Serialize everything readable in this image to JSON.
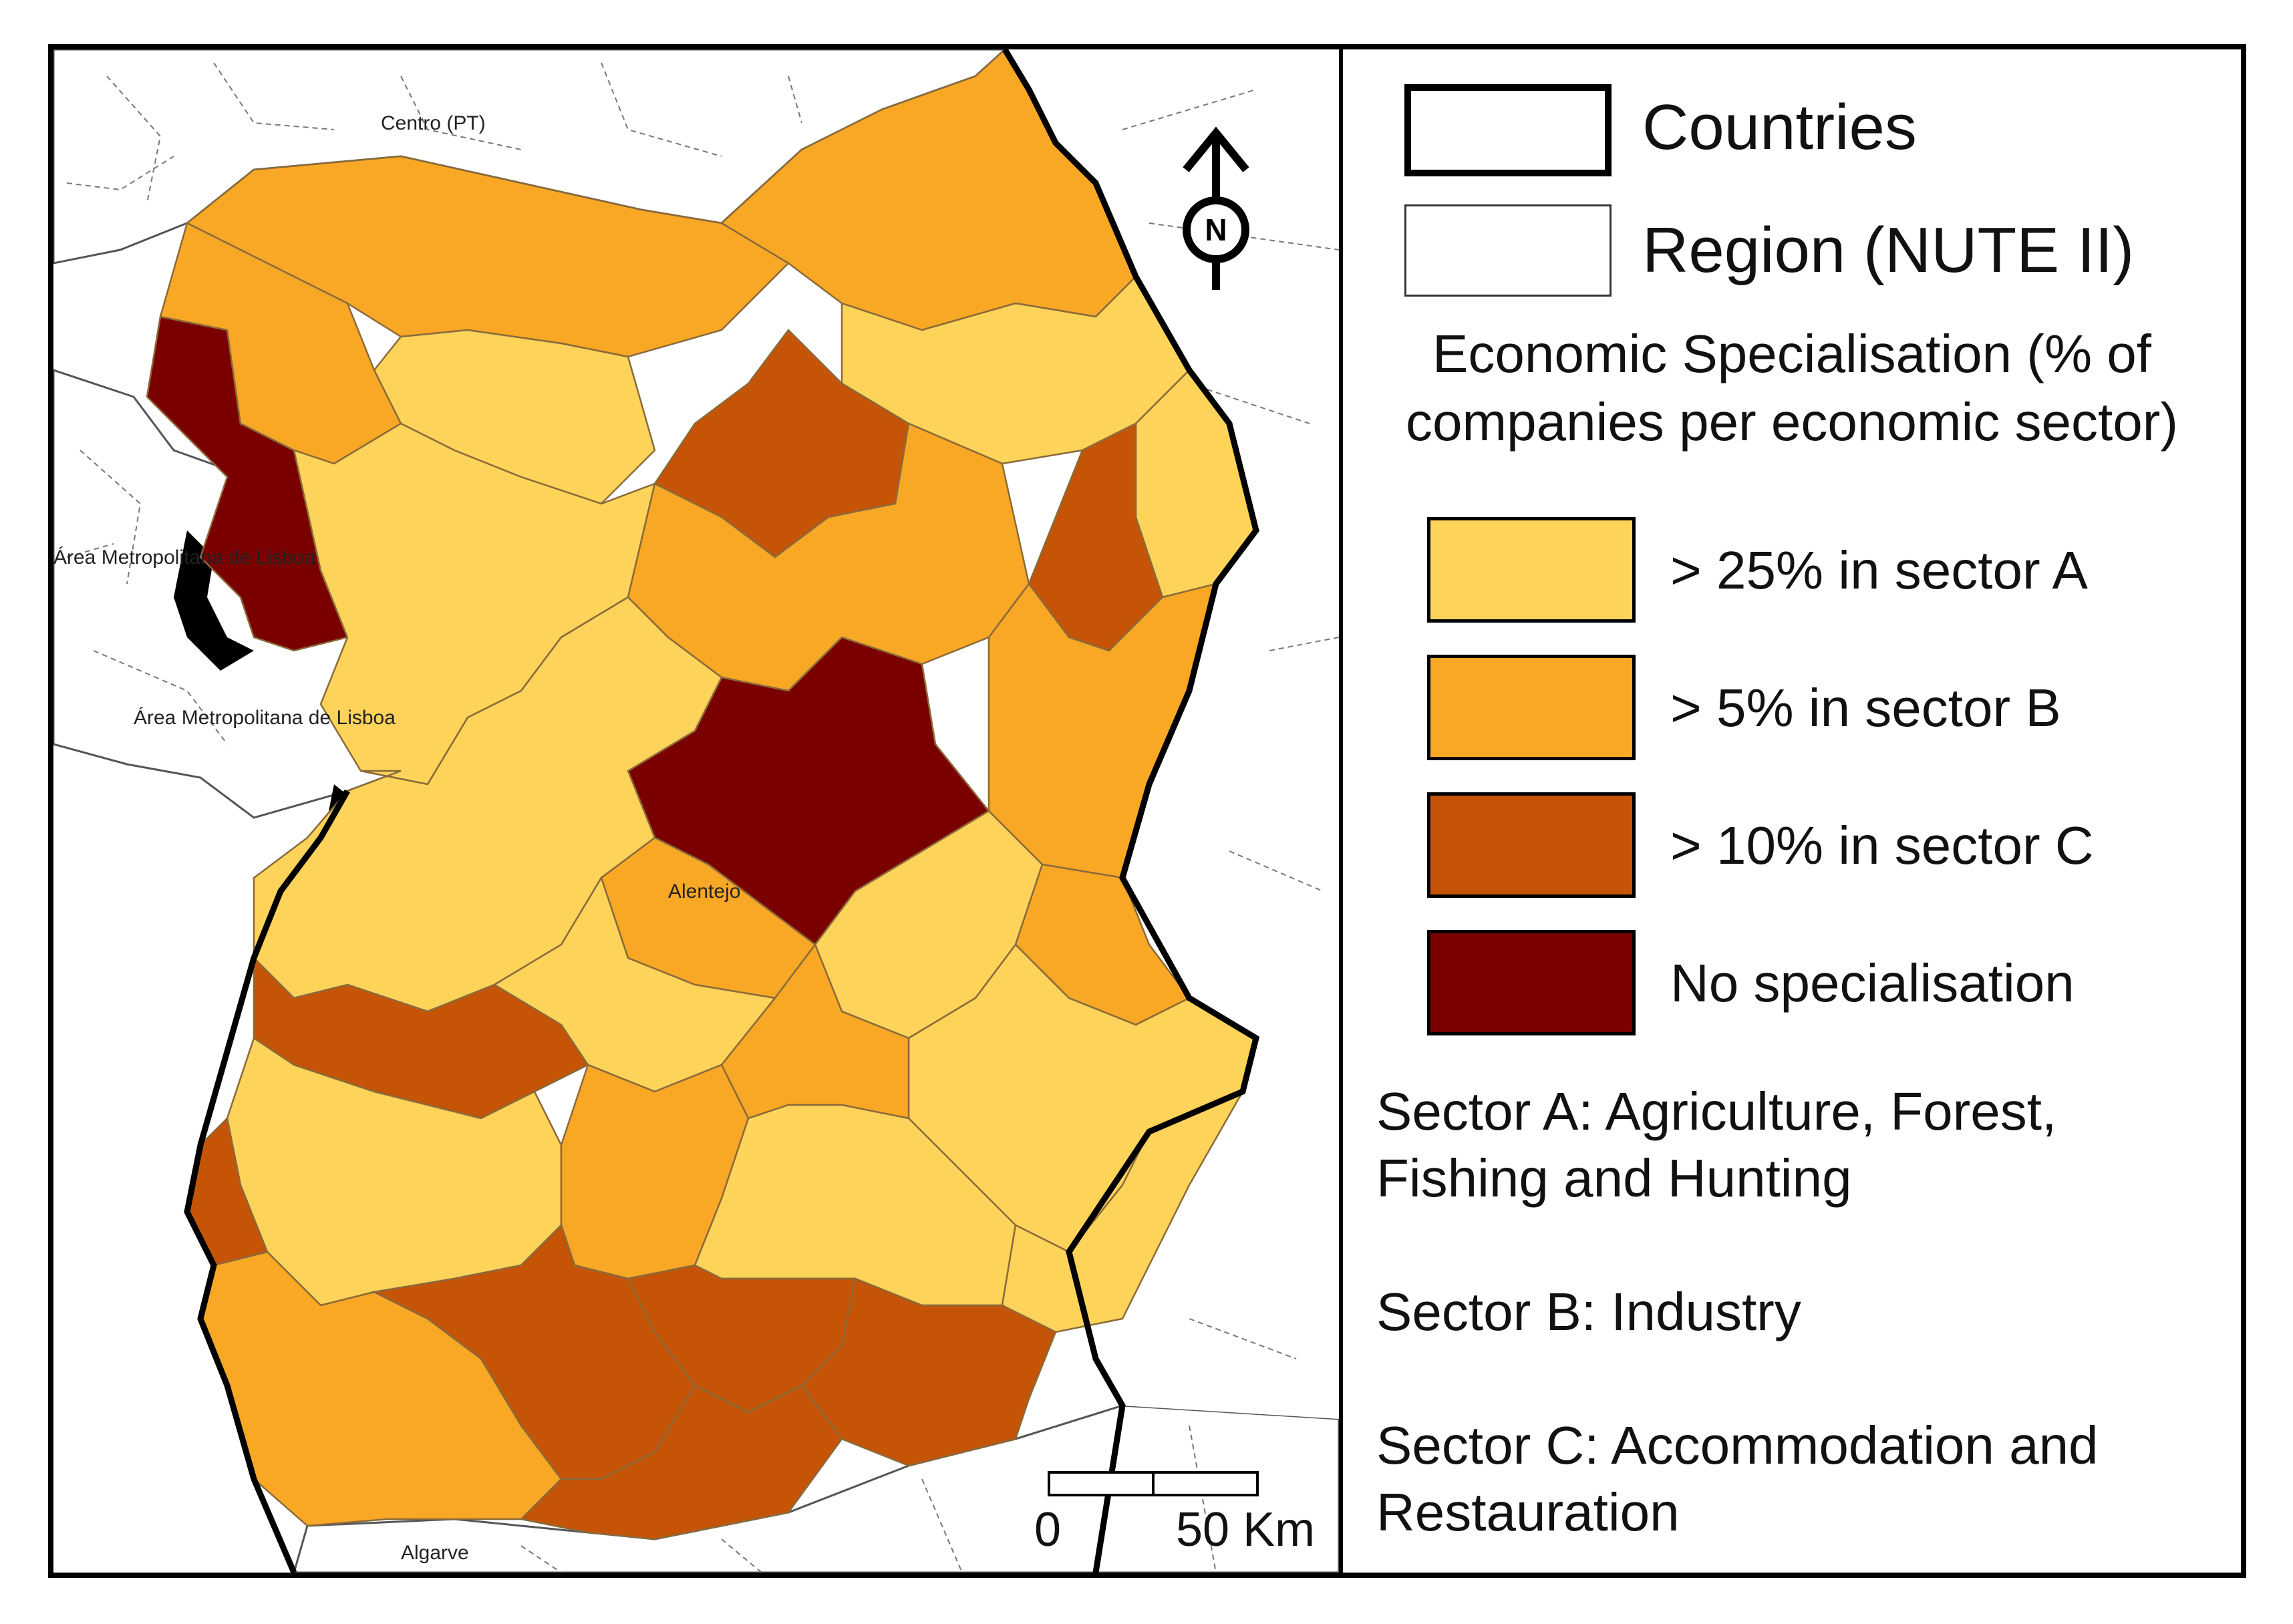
{
  "map": {
    "region_labels": {
      "centro": "Centro (PT)",
      "lisboa_north": "Área Metropolitana de Lisboa",
      "lisboa_south": "Área Metropolitana de Lisboa",
      "alentejo": "Alentejo",
      "algarve": "Algarve"
    },
    "north_letter": "N",
    "scale": {
      "start": "0",
      "end": "50 Km"
    },
    "colors": {
      "sector_a": "#FDD35A",
      "sector_b": "#F9A825",
      "sector_c": "#C65406",
      "none": "#7A0000",
      "sea": "#FFFFFF",
      "border": "#000000"
    }
  },
  "legend": {
    "countries": "Countries",
    "region": "Region (NUTE II)",
    "title_line1": "Economic Specialisation (% of",
    "title_line2": "companies per economic sector)",
    "items": [
      {
        "label": "> 25% in sector A",
        "color": "#FDD35A"
      },
      {
        "label": "> 5% in sector B",
        "color": "#F9A825"
      },
      {
        "label": "> 10% in sector C",
        "color": "#C65406"
      },
      {
        "label": "No specialisation",
        "color": "#7A0000"
      }
    ],
    "sector_a": "Sector A: Agriculture, Forest, Fishing and Hunting",
    "sector_b": "Sector B: Industry",
    "sector_c": "Sector C: Accommodation and Restauration"
  }
}
